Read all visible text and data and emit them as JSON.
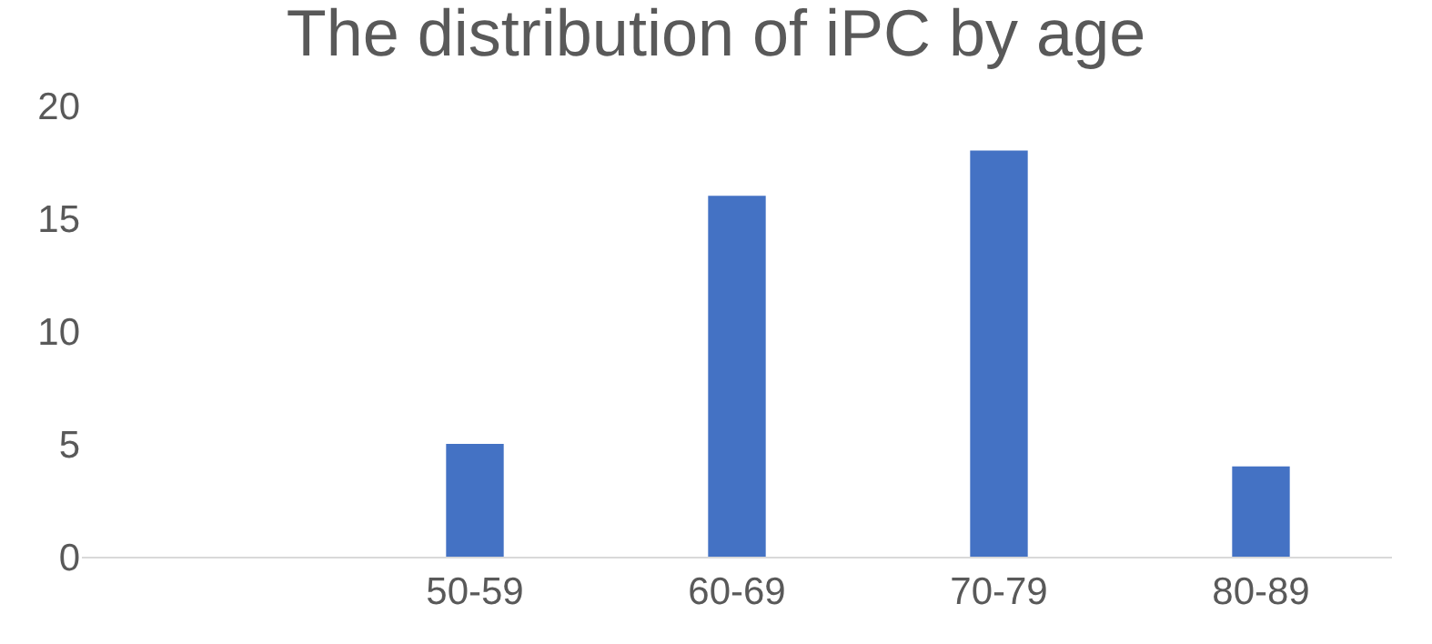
{
  "chart_data": {
    "type": "bar",
    "title": "The distribution of iPC by age",
    "categories": [
      null,
      "50-59",
      "60-69",
      "70-79",
      "80-89"
    ],
    "values": [
      null,
      5,
      16,
      18,
      4
    ],
    "color": "#4472c4",
    "ylim": [
      0,
      20
    ],
    "yticks": [
      0,
      5,
      10,
      15,
      20
    ],
    "grid": false,
    "legend": false
  }
}
